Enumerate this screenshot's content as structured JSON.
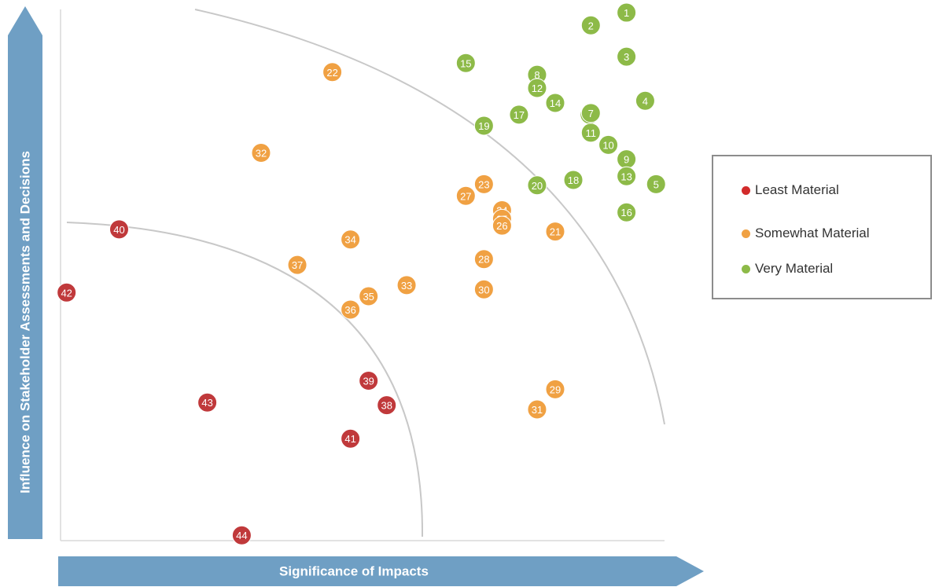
{
  "chart_data": {
    "type": "scatter",
    "title": "",
    "xlabel": "Significance of Impacts",
    "ylabel": "Influence on Stakeholder Assessments and Decisions",
    "colors": {
      "least": "#c0393b",
      "somewhat": "#f0a143",
      "very": "#8dba48"
    },
    "legend": {
      "position": "right",
      "entries": [
        {
          "label": "Least Material",
          "color": "#d22b2b"
        },
        {
          "label": "Somewhat Material",
          "color": "#f0a143"
        },
        {
          "label": "Very Material",
          "color": "#8dba48"
        }
      ]
    },
    "points": [
      {
        "id": "1",
        "x": 93.7,
        "y": 99.4,
        "group": "very"
      },
      {
        "id": "2",
        "x": 87.8,
        "y": 97.0,
        "group": "very"
      },
      {
        "id": "3",
        "x": 93.7,
        "y": 91.1,
        "group": "very"
      },
      {
        "id": "4",
        "x": 96.8,
        "y": 82.8,
        "group": "very"
      },
      {
        "id": "5",
        "x": 98.6,
        "y": 67.1,
        "group": "very"
      },
      {
        "id": "6",
        "x": 87.6,
        "y": 80.2,
        "group": "very"
      },
      {
        "id": "7",
        "x": 87.8,
        "y": 80.5,
        "group": "very"
      },
      {
        "id": "8",
        "x": 78.9,
        "y": 87.7,
        "group": "very"
      },
      {
        "id": "9",
        "x": 93.7,
        "y": 71.8,
        "group": "very"
      },
      {
        "id": "10",
        "x": 90.7,
        "y": 74.5,
        "group": "very"
      },
      {
        "id": "11",
        "x": 87.8,
        "y": 76.8,
        "group": "very"
      },
      {
        "id": "12",
        "x": 78.9,
        "y": 85.2,
        "group": "very"
      },
      {
        "id": "13",
        "x": 93.7,
        "y": 68.6,
        "group": "very"
      },
      {
        "id": "14",
        "x": 81.9,
        "y": 82.4,
        "group": "very"
      },
      {
        "id": "15",
        "x": 67.1,
        "y": 89.9,
        "group": "very"
      },
      {
        "id": "16",
        "x": 93.7,
        "y": 61.8,
        "group": "very"
      },
      {
        "id": "17",
        "x": 75.9,
        "y": 80.2,
        "group": "very"
      },
      {
        "id": "18",
        "x": 84.9,
        "y": 67.9,
        "group": "very"
      },
      {
        "id": "19",
        "x": 70.1,
        "y": 78.1,
        "group": "very"
      },
      {
        "id": "20",
        "x": 78.9,
        "y": 66.9,
        "group": "very"
      },
      {
        "id": "21",
        "x": 81.9,
        "y": 58.2,
        "group": "somewhat"
      },
      {
        "id": "22",
        "x": 45.0,
        "y": 88.2,
        "group": "somewhat"
      },
      {
        "id": "23",
        "x": 70.1,
        "y": 67.1,
        "group": "somewhat"
      },
      {
        "id": "24",
        "x": 73.1,
        "y": 62.2,
        "group": "somewhat"
      },
      {
        "id": "25",
        "x": 73.1,
        "y": 60.6,
        "group": "somewhat"
      },
      {
        "id": "26",
        "x": 73.1,
        "y": 59.3,
        "group": "somewhat"
      },
      {
        "id": "27",
        "x": 67.1,
        "y": 64.9,
        "group": "somewhat"
      },
      {
        "id": "28",
        "x": 70.1,
        "y": 53.0,
        "group": "somewhat"
      },
      {
        "id": "29",
        "x": 81.9,
        "y": 28.5,
        "group": "somewhat"
      },
      {
        "id": "30",
        "x": 70.1,
        "y": 47.3,
        "group": "somewhat"
      },
      {
        "id": "31",
        "x": 78.9,
        "y": 24.7,
        "group": "somewhat"
      },
      {
        "id": "32",
        "x": 33.2,
        "y": 73.0,
        "group": "somewhat"
      },
      {
        "id": "33",
        "x": 57.3,
        "y": 48.1,
        "group": "somewhat"
      },
      {
        "id": "34",
        "x": 48.0,
        "y": 56.7,
        "group": "somewhat"
      },
      {
        "id": "35",
        "x": 51.0,
        "y": 46.0,
        "group": "somewhat"
      },
      {
        "id": "36",
        "x": 48.0,
        "y": 43.5,
        "group": "somewhat"
      },
      {
        "id": "37",
        "x": 39.2,
        "y": 51.9,
        "group": "somewhat"
      },
      {
        "id": "38",
        "x": 54.0,
        "y": 25.5,
        "group": "least"
      },
      {
        "id": "39",
        "x": 51.0,
        "y": 30.1,
        "group": "least"
      },
      {
        "id": "40",
        "x": 9.7,
        "y": 58.6,
        "group": "least"
      },
      {
        "id": "41",
        "x": 48.0,
        "y": 19.2,
        "group": "least"
      },
      {
        "id": "42",
        "x": 1.0,
        "y": 46.7,
        "group": "least"
      },
      {
        "id": "43",
        "x": 24.3,
        "y": 26.0,
        "group": "least"
      },
      {
        "id": "44",
        "x": 30.0,
        "y": 1.0,
        "group": "least"
      }
    ],
    "xlim": [
      0,
      100
    ],
    "ylim": [
      0,
      100
    ]
  }
}
